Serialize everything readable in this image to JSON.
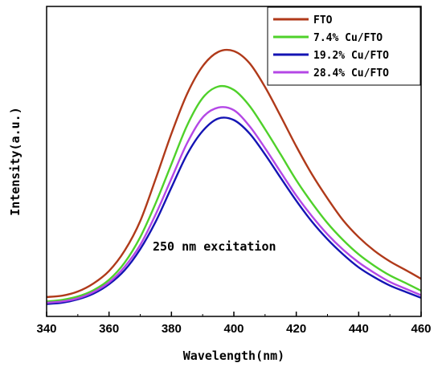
{
  "chart_data": {
    "type": "line",
    "xlabel": "Wavelength(nm)",
    "ylabel": "Intensity(a.u.)",
    "xlim": [
      340,
      460
    ],
    "ylim": [
      0,
      100
    ],
    "x_ticks": [
      340,
      360,
      380,
      400,
      420,
      440,
      460
    ],
    "y_ticks_shown": false,
    "grid": false,
    "legend_position": "top-right",
    "annotation": "250 nm excitation",
    "x": [
      340,
      345,
      350,
      355,
      360,
      365,
      370,
      375,
      380,
      385,
      390,
      395,
      400,
      405,
      410,
      415,
      420,
      425,
      430,
      435,
      440,
      445,
      450,
      455,
      460
    ],
    "series": [
      {
        "name": "FTO",
        "color": "#b03a1a",
        "values": [
          1.9,
          2.4,
          4.0,
          7.1,
          11.9,
          19.7,
          31.1,
          47.5,
          64.7,
          79.9,
          90.6,
          96.1,
          96.4,
          91.8,
          82.6,
          71.4,
          59.8,
          49.1,
          39.8,
          31.4,
          24.9,
          19.7,
          15.6,
          12.3,
          8.9
        ]
      },
      {
        "name": "7.4% Cu/FTO",
        "color": "#4fd12a",
        "values": [
          0.2,
          0.8,
          2.1,
          4.5,
          8.5,
          15.1,
          24.9,
          38.1,
          53.0,
          67.8,
          78.4,
          82.8,
          81.5,
          75.4,
          66.4,
          56.7,
          46.8,
          38.1,
          30.3,
          23.8,
          18.3,
          13.9,
          10.2,
          7.3,
          4.3
        ]
      },
      {
        "name": "19.2% Cu/FTO",
        "color": "#1414b4",
        "values": [
          -0.8,
          -0.3,
          1.0,
          3.2,
          6.8,
          12.2,
          20.3,
          31.0,
          44.0,
          56.7,
          65.7,
          70.5,
          69.9,
          64.8,
          56.7,
          47.7,
          38.9,
          30.9,
          24.1,
          18.3,
          13.3,
          9.5,
          6.3,
          3.9,
          1.6
        ]
      },
      {
        "name": "28.4% Cu/FTO",
        "color": "#b447e6",
        "values": [
          -0.3,
          0.2,
          1.4,
          3.8,
          7.5,
          13.5,
          21.9,
          33.8,
          47.4,
          61.0,
          70.9,
          74.7,
          73.7,
          67.6,
          59.1,
          49.9,
          40.9,
          33.0,
          26.0,
          20.1,
          15.2,
          11.2,
          7.7,
          5.1,
          2.6
        ]
      }
    ]
  }
}
